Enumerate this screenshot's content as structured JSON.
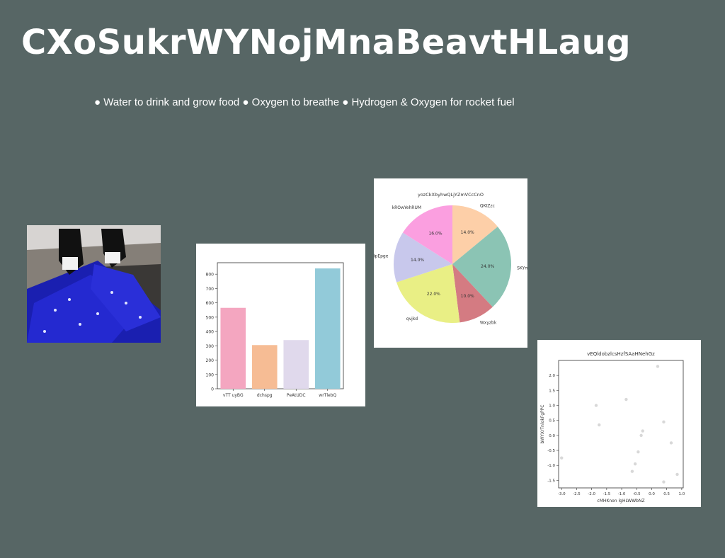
{
  "slide": {
    "title": "CXoSukrWYNojMnaBeavtHLaug",
    "bullets": "● Water to drink and grow food ● Oxygen to breathe ● Hydrogen & Oxygen for rocket fuel"
  },
  "photo": {
    "description_icon": "sneakers-photo-icon"
  },
  "chart_data": [
    {
      "type": "bar",
      "categories": [
        "vTT uyBG",
        "dchspg",
        "PeAtUDC",
        "wrTlebQ"
      ],
      "values": [
        565,
        305,
        340,
        840
      ],
      "colors": [
        "#f4a6c0",
        "#f6bc94",
        "#e0d9ec",
        "#92cad9"
      ],
      "ylim": [
        0,
        880
      ],
      "yticks": [
        0,
        100,
        200,
        300,
        400,
        500,
        600,
        700,
        800
      ],
      "title": "",
      "xlabel": "",
      "ylabel": ""
    },
    {
      "type": "pie",
      "title": "yozCkXbyhwQLjYZmVCcCnO",
      "slices": [
        {
          "label": "QKIZzc",
          "value": 14.0,
          "pct_label": "14.0%",
          "color": "#fdcfa8"
        },
        {
          "label": "SKYmUUR",
          "value": 24.0,
          "pct_label": "24.0%",
          "color": "#8bc4b4"
        },
        {
          "label": "Wxyzbk",
          "value": 10.0,
          "pct_label": "10.0%",
          "color": "#d47b82"
        },
        {
          "label": "qvjkd",
          "value": 22.0,
          "pct_label": "22.0%",
          "color": "#e9ef85"
        },
        {
          "label": "bFTIdpEpge",
          "value": 14.0,
          "pct_label": "14.0%",
          "color": "#c8c8ec"
        },
        {
          "label": "kROwYehRUM",
          "value": 16.0,
          "pct_label": "16.0%",
          "color": "#fb9fe0"
        }
      ]
    },
    {
      "type": "scatter",
      "title": "vEQldobzlcsHzfSAaHNehGz",
      "xlabel": "cMHKnon lgHLWWbNZ",
      "ylabel": "bWYXrTnlokFgPPC",
      "xlim": [
        -3.1,
        1.05
      ],
      "ylim": [
        -1.75,
        2.5
      ],
      "xticks": [
        -3.0,
        -2.5,
        -2.0,
        -1.5,
        -1.0,
        -0.5,
        0.0,
        0.5,
        1.0
      ],
      "yticks": [
        -1.5,
        -1.0,
        -0.5,
        0.0,
        0.5,
        1.0,
        1.5,
        2.0
      ],
      "point_color": "#d8d8d8",
      "points": [
        {
          "x": -3.0,
          "y": -0.75
        },
        {
          "x": -1.85,
          "y": 1.0
        },
        {
          "x": -1.75,
          "y": 0.35
        },
        {
          "x": -0.85,
          "y": 1.2
        },
        {
          "x": 0.2,
          "y": 2.3
        },
        {
          "x": 0.4,
          "y": 0.45
        },
        {
          "x": 0.65,
          "y": -0.25
        },
        {
          "x": -0.3,
          "y": 0.15
        },
        {
          "x": -0.35,
          "y": 0.0
        },
        {
          "x": -0.45,
          "y": -0.55
        },
        {
          "x": -0.55,
          "y": -0.95
        },
        {
          "x": -0.65,
          "y": -1.2
        },
        {
          "x": 0.4,
          "y": -1.55
        },
        {
          "x": 0.85,
          "y": -1.3
        }
      ]
    }
  ]
}
